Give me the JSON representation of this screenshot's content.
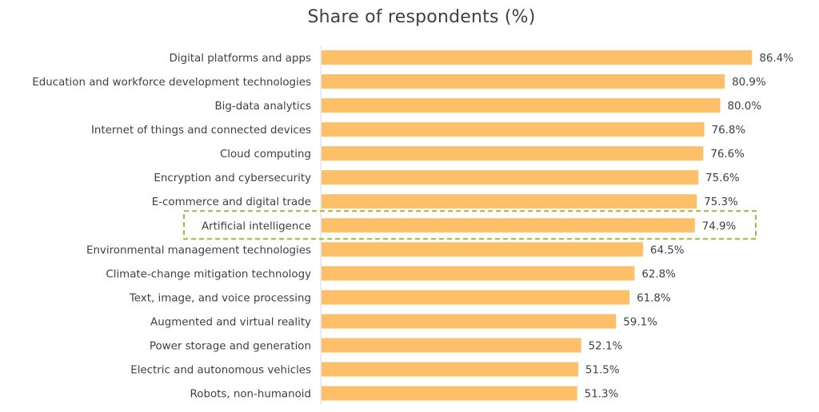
{
  "chart_data": {
    "type": "bar",
    "orientation": "horizontal",
    "title": "Share of respondents (%)",
    "categories": [
      "Digital platforms and apps",
      "Education and workforce development technologies",
      "Big-data analytics",
      "Internet of things and connected devices",
      "Cloud computing",
      "Encryption and cybersecurity",
      "E-commerce and digital trade",
      "Artificial intelligence",
      "Environmental management technologies",
      "Climate-change mitigation technology",
      "Text, image, and voice processing",
      "Augmented and virtual reality",
      "Power storage and generation",
      "Electric and autonomous vehicles",
      "Robots, non-humanoid"
    ],
    "values": [
      86.4,
      80.9,
      80.0,
      76.8,
      76.6,
      75.6,
      75.3,
      74.9,
      64.5,
      62.8,
      61.8,
      59.1,
      52.1,
      51.5,
      51.3
    ],
    "value_labels": [
      "86.4%",
      "80.9%",
      "80.0%",
      "76.8%",
      "76.6%",
      "75.6%",
      "75.3%",
      "74.9%",
      "64.5%",
      "62.8%",
      "61.8%",
      "59.1%",
      "52.1%",
      "51.5%",
      "51.3%"
    ],
    "xlim": [
      0,
      90
    ],
    "highlighted_category": "Artificial intelligence",
    "grid": false,
    "legend": "none",
    "colors": {
      "bar": "#FDC068",
      "highlight_border": "#9BBB3B",
      "text": "#404040",
      "axis": "#D9D9D9"
    }
  }
}
